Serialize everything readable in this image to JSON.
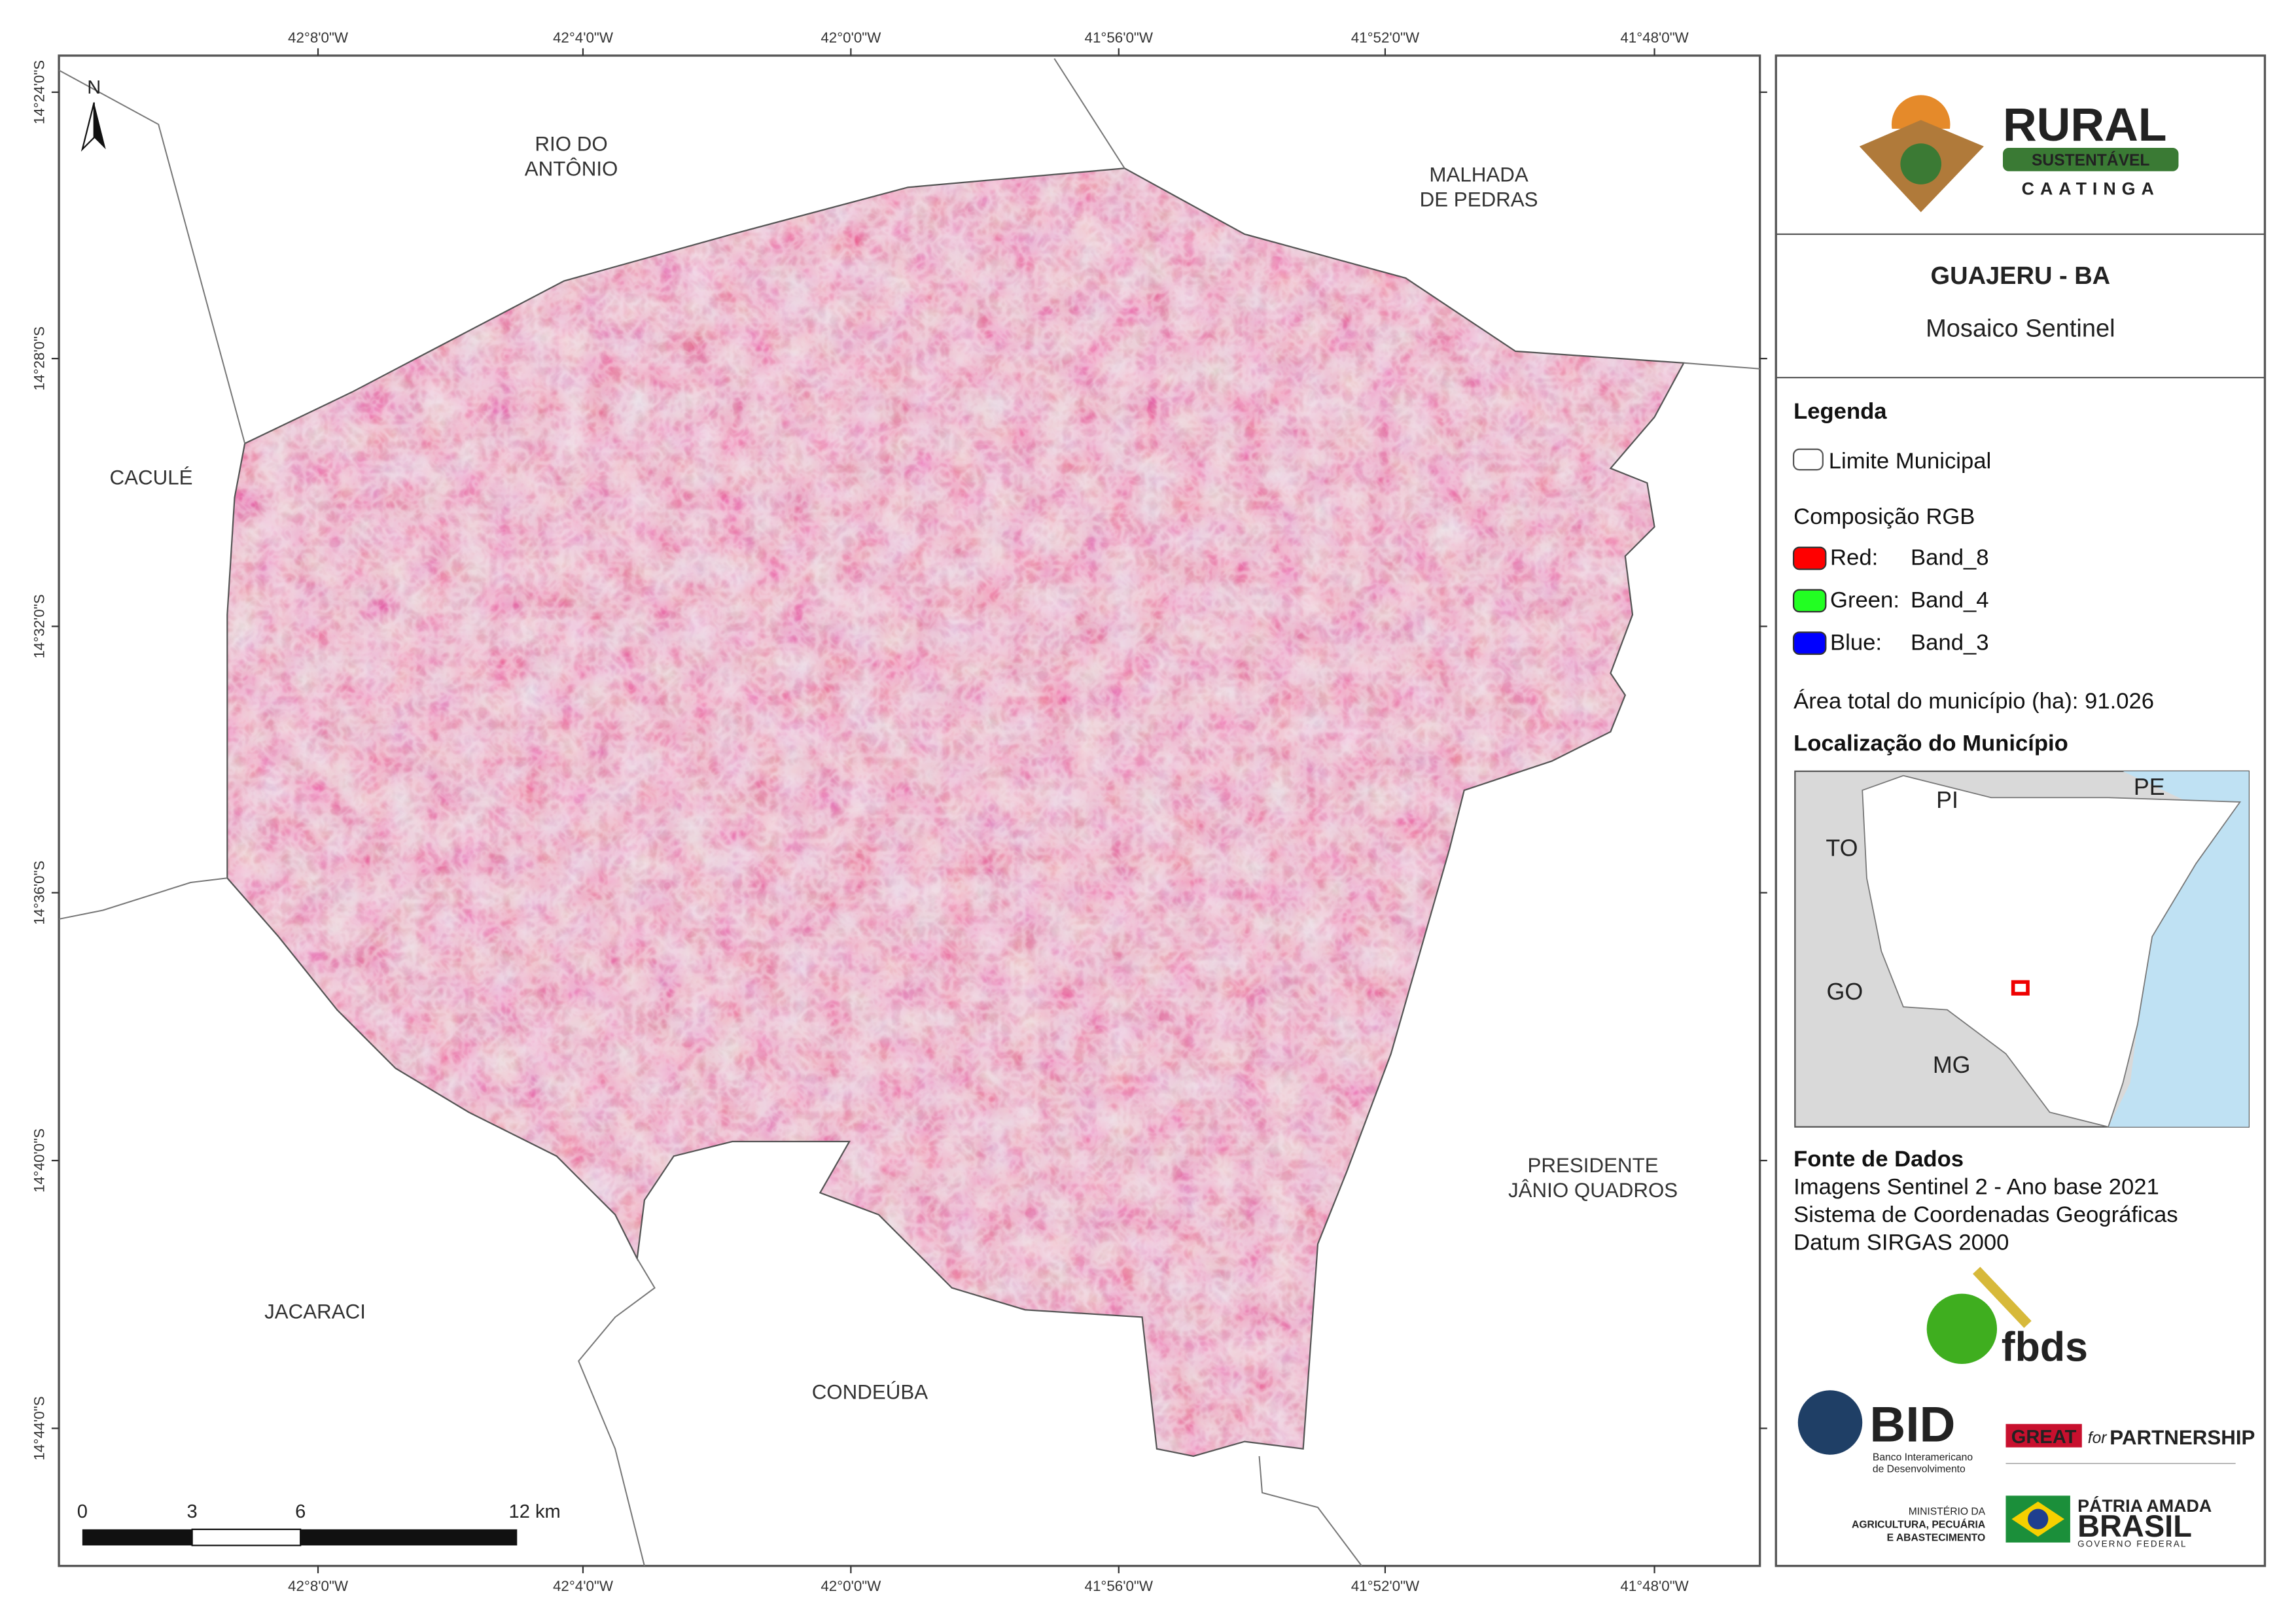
{
  "graticule": {
    "x_labels": [
      "42°8'0\"W",
      "42°4'0\"W",
      "42°0'0\"W",
      "41°56'0\"W",
      "41°52'0\"W",
      "41°48'0\"W"
    ],
    "y_labels": [
      "14°24'0\"S",
      "14°28'0\"S",
      "14°32'0\"S",
      "14°36'0\"S",
      "14°40'0\"S",
      "14°44'0\"S"
    ]
  },
  "north": "N",
  "neighbors": [
    [
      "RIO DO",
      "ANTÔNIO"
    ],
    [
      "MALHADA",
      "DE PEDRAS"
    ],
    [
      "CACULÉ"
    ],
    [
      "PRESIDENTE",
      "JÂNIO QUADROS"
    ],
    [
      "JACARACI"
    ],
    [
      "CONDEÚBA"
    ]
  ],
  "scale_bar": [
    "0",
    "3",
    "6",
    "12 km"
  ],
  "logo": {
    "line1": "RURAL",
    "line2": "SUSTENTÁVEL",
    "line3": "CAATINGA"
  },
  "header": {
    "title": "GUAJERU - BA",
    "subtitle": "Mosaico Sentinel"
  },
  "legend": {
    "title": "Legenda",
    "boundary": "Limite Municipal",
    "rgb_title": "Composição RGB",
    "bands": [
      [
        "Red:",
        "Band_8"
      ],
      [
        "Green:",
        "Band_4"
      ],
      [
        "Blue:",
        "Band_3"
      ]
    ],
    "area": "Área total do município (ha): 91.026"
  },
  "location": {
    "title": "Localização do Município",
    "states": [
      "PI",
      "PE",
      "TO",
      "GO",
      "MG"
    ]
  },
  "sources": {
    "title": "Fonte de Dados",
    "lines": [
      "Imagens Sentinel 2 - Ano base 2021",
      "Sistema de Coordenadas Geográficas",
      "Datum SIRGAS 2000"
    ]
  },
  "partners": {
    "fbds": "fbds",
    "bid": "BID",
    "bid_sub": [
      "Banco Interamericano",
      "de Desenvolvimento"
    ],
    "great": "GREAT",
    "great_for": "for",
    "great_partner": "PARTNERSHIP",
    "ministry": [
      "MINISTÉRIO DA",
      "AGRICULTURA, PECUÁRIA",
      "E ABASTECIMENTO"
    ],
    "brasil": [
      "PÁTRIA AMADA",
      "BRASIL",
      "GOVERNO FEDERAL"
    ]
  }
}
